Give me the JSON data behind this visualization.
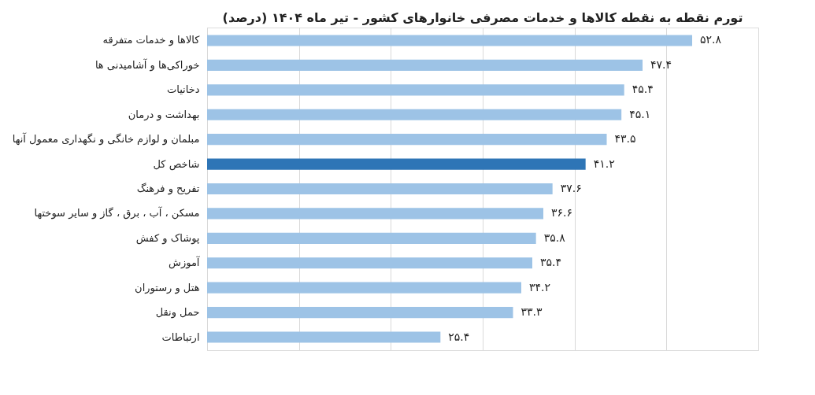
{
  "chart_data": {
    "type": "bar",
    "orientation": "horizontal",
    "title": "تورم نقطه به نقطه کالاها و خدمات مصرفی خانوارهای کشور - تیر ماه ۱۴۰۴ (درصد)",
    "categories": [
      "کالاها و خدمات متفرقه",
      "خوراکی‌ها و آشامیدنی ها",
      "دخانیات",
      "بهداشت و درمان",
      "مبلمان و لوازم خانگی و نگهداری معمول آنها",
      "شاخص کل",
      "تفریح و فرهنگ",
      "مسکن ، آب ، برق ، گاز و سایر سوختها",
      "پوشاک و کفش",
      "آموزش",
      "هتل و رستوران",
      "حمل ونقل",
      "ارتباطات"
    ],
    "values": [
      52.8,
      47.4,
      45.4,
      45.1,
      43.5,
      41.2,
      37.6,
      36.6,
      35.8,
      35.4,
      34.2,
      33.3,
      25.4
    ],
    "value_labels": [
      "۵۲.۸",
      "۴۷.۴",
      "۴۵.۴",
      "۴۵.۱",
      "۴۳.۵",
      "۴۱.۲",
      "۳۷.۶",
      "۳۶.۶",
      "۳۵.۸",
      "۳۵.۴",
      "۳۴.۲",
      "۳۳.۳",
      "۲۵.۴"
    ],
    "colors": [
      "#9dc3e6",
      "#9dc3e6",
      "#9dc3e6",
      "#9dc3e6",
      "#9dc3e6",
      "#2e75b6",
      "#9dc3e6",
      "#9dc3e6",
      "#9dc3e6",
      "#9dc3e6",
      "#9dc3e6",
      "#9dc3e6",
      "#9dc3e6"
    ],
    "xlim": [
      0,
      60
    ],
    "xticks": [
      {
        "value": 0,
        "label": null
      },
      {
        "value": 10,
        "label": null
      },
      {
        "value": 20,
        "label": null
      },
      {
        "value": 30,
        "label": null
      },
      {
        "value": 40,
        "label": null
      },
      {
        "value": 50,
        "label": null
      },
      {
        "value": 60,
        "label": null
      }
    ],
    "grid": "x",
    "tick_labels": "y"
  }
}
